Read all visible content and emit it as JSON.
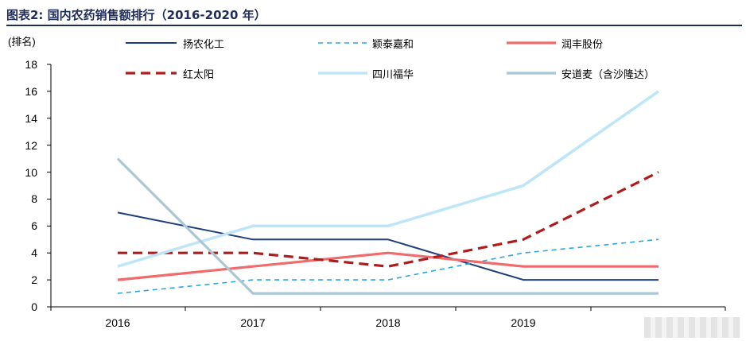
{
  "title": "图表2: 国内农药销售额排行（2016-2020 年）",
  "chart_data": {
    "type": "line",
    "ylabel": "(排名)",
    "ylim": [
      0,
      18
    ],
    "yticks": [
      "0",
      "2",
      "4",
      "6",
      "8",
      "10",
      "12",
      "14",
      "16",
      "18"
    ],
    "categories": [
      "2016",
      "2017",
      "2018",
      "2019",
      ""
    ],
    "legend_position": "top",
    "grid": false,
    "series": [
      {
        "name": "扬农化工",
        "values": [
          7,
          5,
          5,
          2,
          2
        ],
        "color": "#1f3f7a",
        "dash": "solid",
        "width": 2
      },
      {
        "name": "颖泰嘉和",
        "values": [
          1,
          2,
          2,
          4,
          5
        ],
        "color": "#2aa7df",
        "dash": "dashed",
        "width": 1.6
      },
      {
        "name": "润丰股份",
        "values": [
          2,
          3,
          4,
          3,
          3
        ],
        "color": "#f06b6b",
        "dash": "solid",
        "width": 3.2
      },
      {
        "name": "红太阳",
        "values": [
          4,
          4,
          3,
          5,
          10
        ],
        "color": "#b01c1c",
        "dash": "dashed",
        "width": 3.2
      },
      {
        "name": "四川福华",
        "values": [
          3,
          6,
          6,
          9,
          16
        ],
        "color": "#bfe6f6",
        "dash": "solid",
        "width": 3.6
      },
      {
        "name": "安道麦（含沙隆达）",
        "values": [
          11,
          1,
          1,
          1,
          1
        ],
        "color": "#a9c8d6",
        "dash": "solid",
        "width": 3.2
      }
    ]
  }
}
